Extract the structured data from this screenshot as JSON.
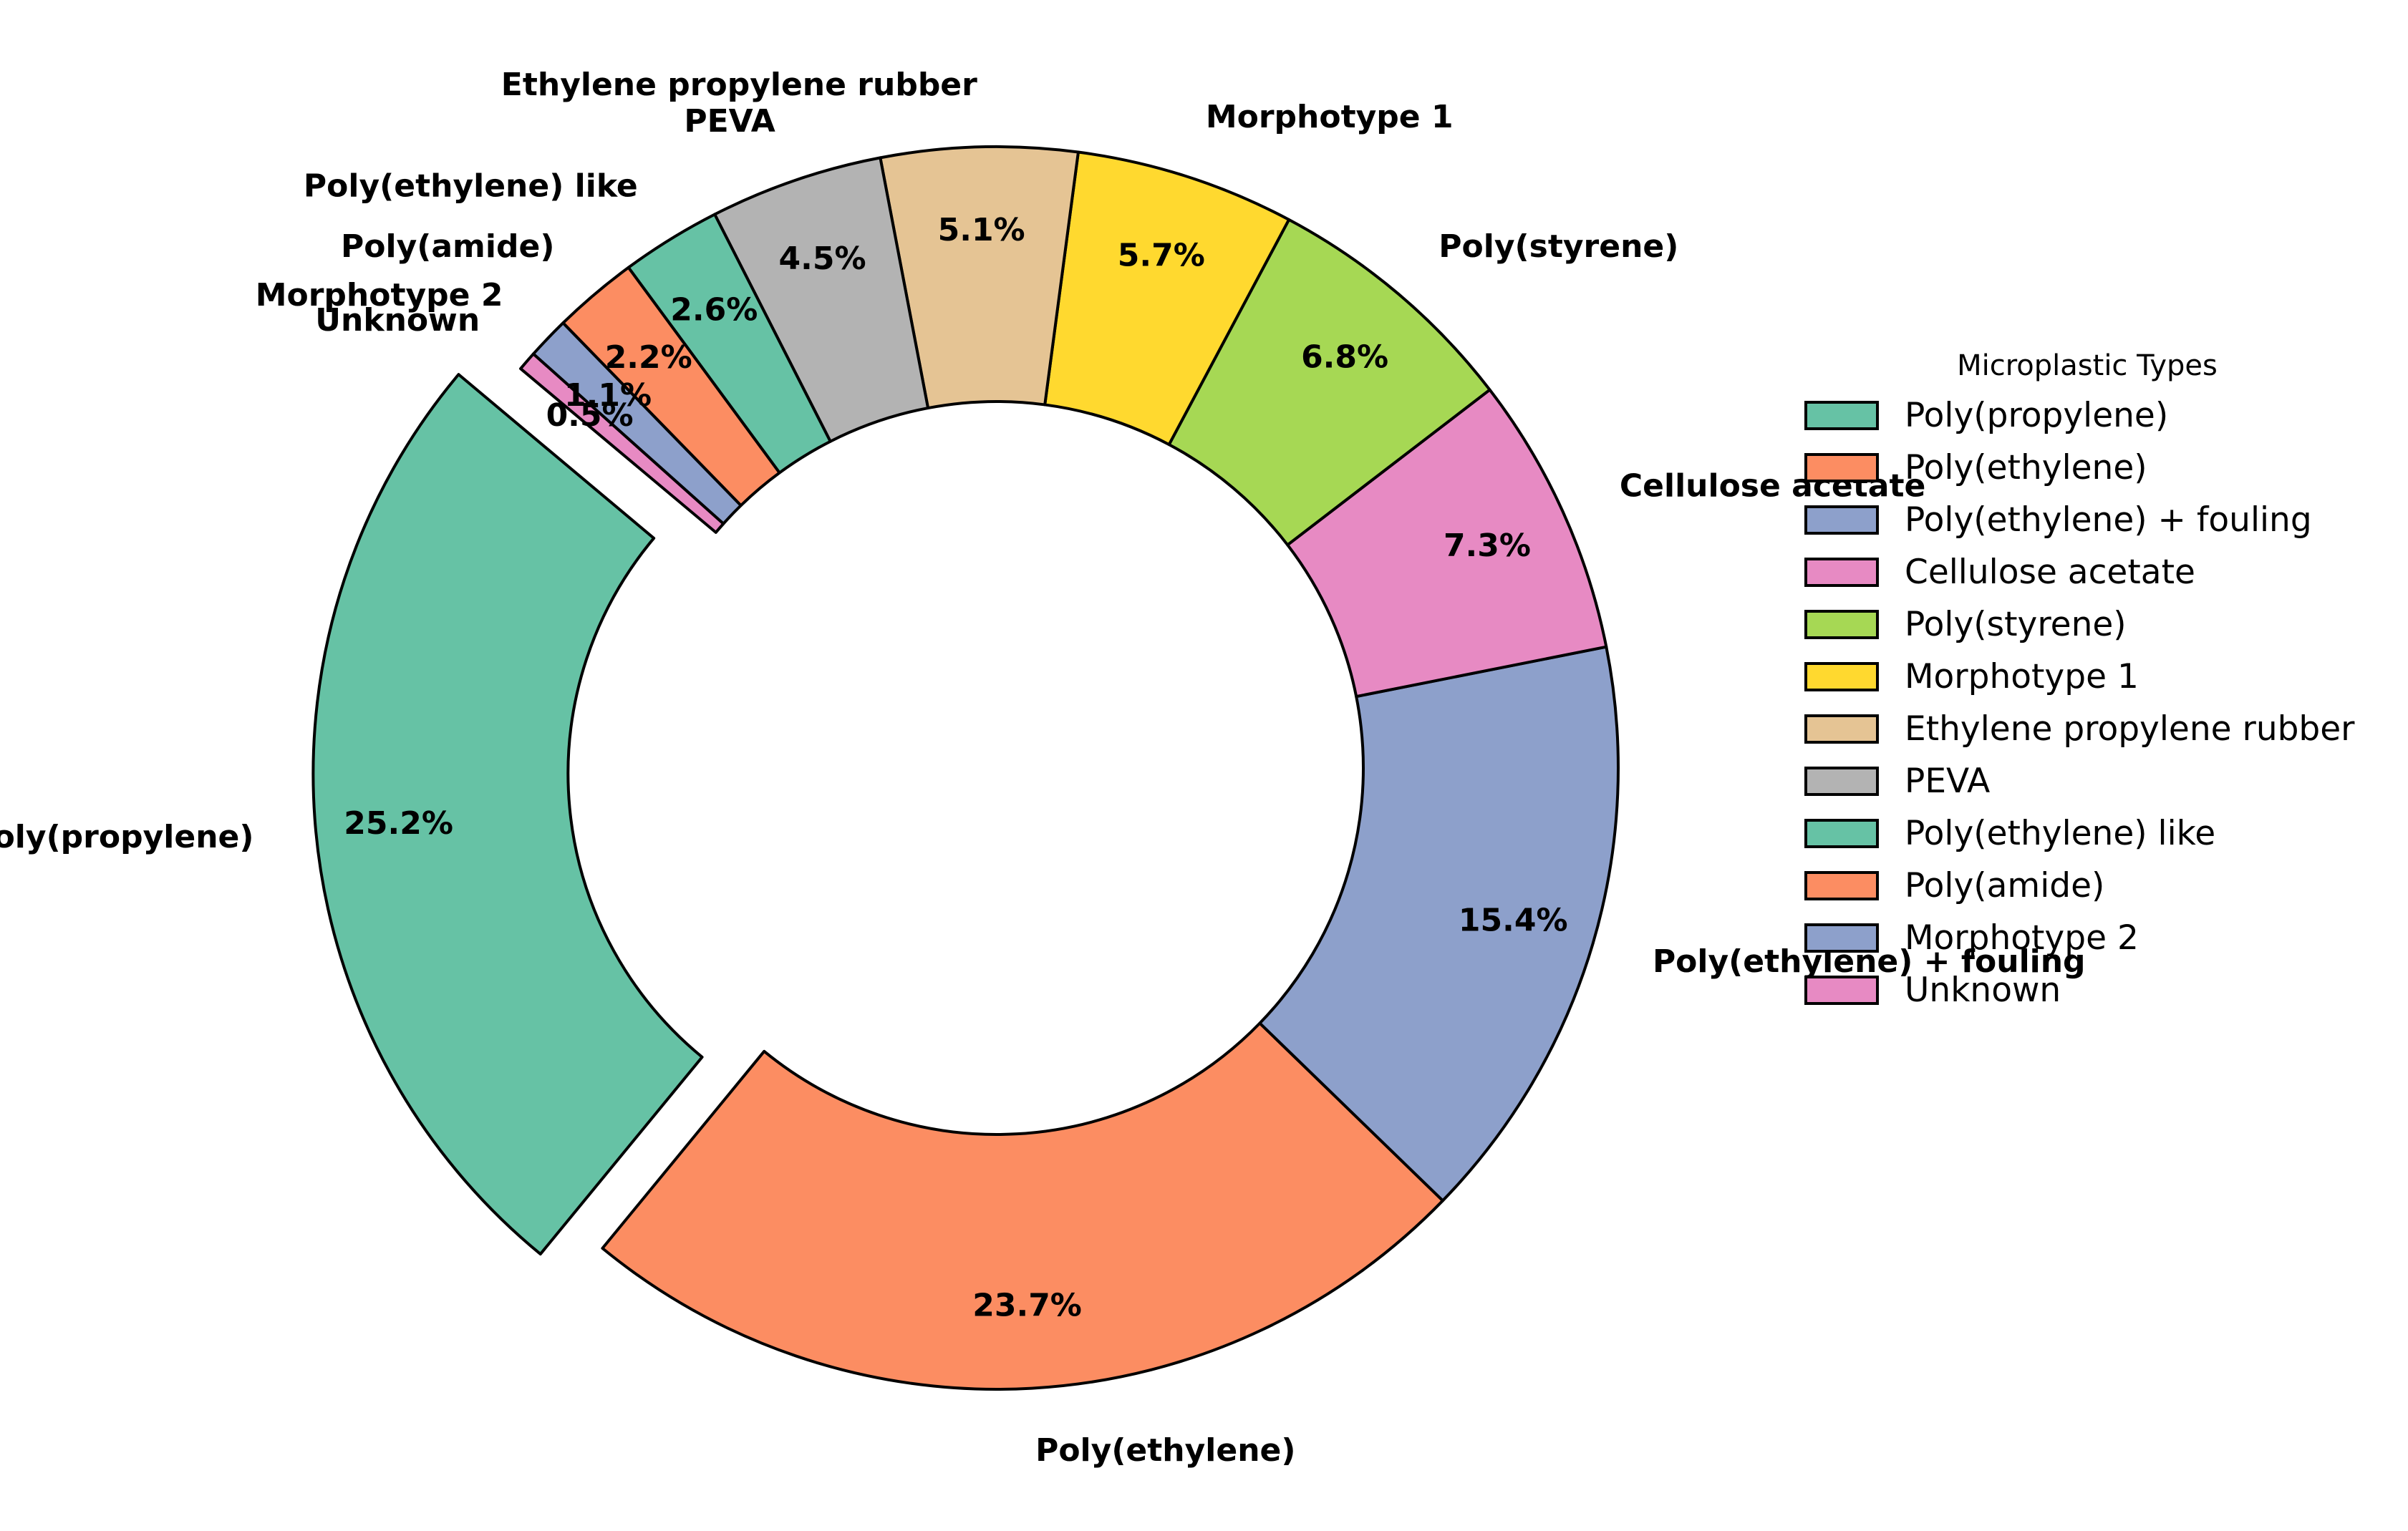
{
  "chart_data": {
    "type": "pie",
    "donut": true,
    "start_angle_deg": 140,
    "direction": "counterclockwise",
    "exploded": [
      "Poly(propylene)"
    ],
    "categories": [
      "Poly(propylene)",
      "Poly(ethylene)",
      "Poly(ethylene) + fouling",
      "Cellulose acetate",
      "Poly(styrene)",
      "Morphotype 1",
      "Ethylene propylene rubber",
      "PEVA",
      "Poly(ethylene) like",
      "Poly(amide)",
      "Morphotype 2",
      "Unknown"
    ],
    "values": [
      25.2,
      23.7,
      15.4,
      7.3,
      6.8,
      5.7,
      5.1,
      4.5,
      2.6,
      2.2,
      1.1,
      0.5
    ],
    "pct_labels": [
      "25.2%",
      "23.7%",
      "15.4%",
      "7.3%",
      "6.8%",
      "5.7%",
      "5.1%",
      "4.5%",
      "2.6%",
      "2.2%",
      "1.1%",
      "0.5%"
    ],
    "colors": [
      "#66c2a5",
      "#fc8d62",
      "#8da0cb",
      "#e78ac3",
      "#a6d854",
      "#ffd92f",
      "#e5c494",
      "#b3b3b3",
      "#66c2a5",
      "#fc8d62",
      "#8da0cb",
      "#e78ac3"
    ],
    "legend": {
      "title": "Microplastic Types",
      "placement": "right"
    }
  }
}
